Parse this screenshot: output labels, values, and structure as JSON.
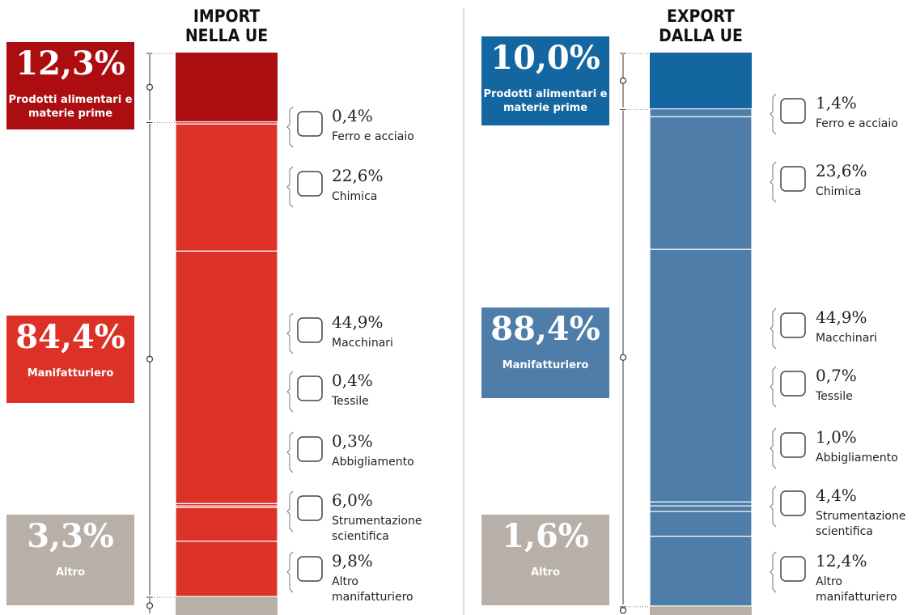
{
  "chart_data": [
    {
      "type": "stacked-bar",
      "title": [
        "IMPORT",
        "NELLA UE"
      ],
      "groups": [
        {
          "name": "Prodotti alimentari e materie prime",
          "value": 12.3,
          "value_label": "12,3%",
          "color": "#ac0d10"
        },
        {
          "name": "Manifatturiero",
          "value": 84.4,
          "value_label": "84,4%",
          "color": "#dc3127"
        },
        {
          "name": "Altro",
          "value": 3.3,
          "value_label": "3,3%",
          "color": "#b8b0a8"
        }
      ],
      "segments": [
        {
          "name": "Ferro e acciaio",
          "value": 0.4,
          "value_label": "0,4%"
        },
        {
          "name": "Chimica",
          "value": 22.6,
          "value_label": "22,6%"
        },
        {
          "name": "Macchinari",
          "value": 44.9,
          "value_label": "44,9%"
        },
        {
          "name": "Tessile",
          "value": 0.4,
          "value_label": "0,4%"
        },
        {
          "name": "Abbigliamento",
          "value": 0.3,
          "value_label": "0,3%"
        },
        {
          "name": "Strumentazione scientifica",
          "value": 6.0,
          "value_label": "6,0%"
        },
        {
          "name": "Altro manifatturiero",
          "value": 9.8,
          "value_label": "9,8%"
        }
      ]
    },
    {
      "type": "stacked-bar",
      "title": [
        "EXPORT",
        "DALLA UE"
      ],
      "groups": [
        {
          "name": "Prodotti alimentari e materie prime",
          "value": 10.0,
          "value_label": "10,0%",
          "color": "#13669f"
        },
        {
          "name": "Manifatturiero",
          "value": 88.4,
          "value_label": "88,4%",
          "color": "#4d7da8"
        },
        {
          "name": "Altro",
          "value": 1.6,
          "value_label": "1,6%",
          "color": "#b8b0a8"
        }
      ],
      "segments": [
        {
          "name": "Ferro e acciaio",
          "value": 1.4,
          "value_label": "1,4%"
        },
        {
          "name": "Chimica",
          "value": 23.6,
          "value_label": "23,6%"
        },
        {
          "name": "Macchinari",
          "value": 44.9,
          "value_label": "44,9%"
        },
        {
          "name": "Tessile",
          "value": 0.7,
          "value_label": "0,7%"
        },
        {
          "name": "Abbigliamento",
          "value": 1.0,
          "value_label": "1,0%"
        },
        {
          "name": "Strumentazione scientifica",
          "value": 4.4,
          "value_label": "4,4%"
        },
        {
          "name": "Altro manifatturiero",
          "value": 12.4,
          "value_label": "12,4%"
        }
      ]
    }
  ]
}
